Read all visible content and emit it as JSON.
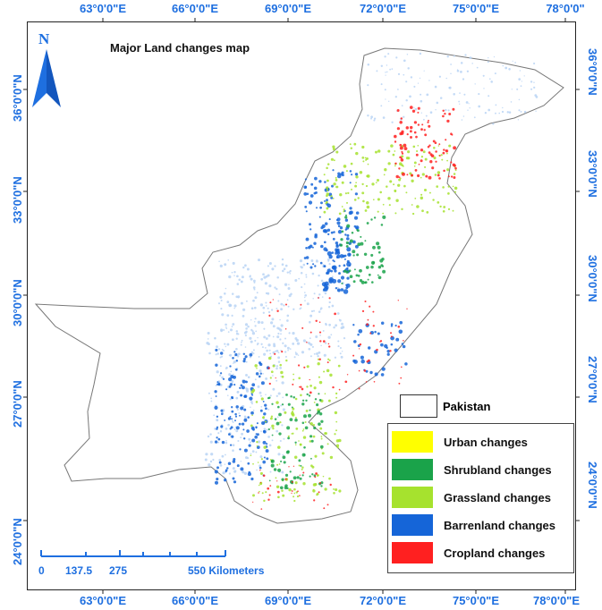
{
  "map": {
    "title": "Major Land changes map",
    "north_arrow": {
      "label": "N",
      "icon": "north-arrow-icon"
    },
    "top_longitudes": [
      "63°0'0\"E",
      "66°0'0\"E",
      "69°0'0\"E",
      "72°0'0\"E",
      "75°0'0\"E",
      "78°0'0\""
    ],
    "bottom_longitudes": [
      "63°0'0\"E",
      "66°0'0\"E",
      "69°0'0\"E",
      "72°0'0\"E",
      "75°0'0\"E",
      "78°0'0\"E"
    ],
    "left_latitudes": [
      "36°0'0\"N",
      "33°0'0\"N",
      "30°0'0\"N",
      "27°0'0\"N",
      "24°0'0\"N"
    ],
    "right_latitudes": [
      "36°0'0\"N",
      "33°0'0\"N",
      "30°0'0\"N",
      "27°0'0\"N",
      "24°0'0\"N"
    ],
    "legend": {
      "boundary": {
        "label": "Pakistan"
      },
      "items": [
        {
          "label": "Urban changes",
          "color": "#ffff00"
        },
        {
          "label": "Shrubland changes",
          "color": "#1aa34a"
        },
        {
          "label": "Grassland changes",
          "color": "#a6e22e"
        },
        {
          "label": "Barrenland changes",
          "color": "#1565d8"
        },
        {
          "label": "Cropland changes",
          "color": "#ff2020"
        }
      ]
    },
    "scale_bar": {
      "labels": [
        "0",
        "137.5",
        "275",
        "550 Kilometers"
      ]
    },
    "colors": {
      "coord_text": "#1e6fe0",
      "accent": "#1e6fe0"
    }
  }
}
